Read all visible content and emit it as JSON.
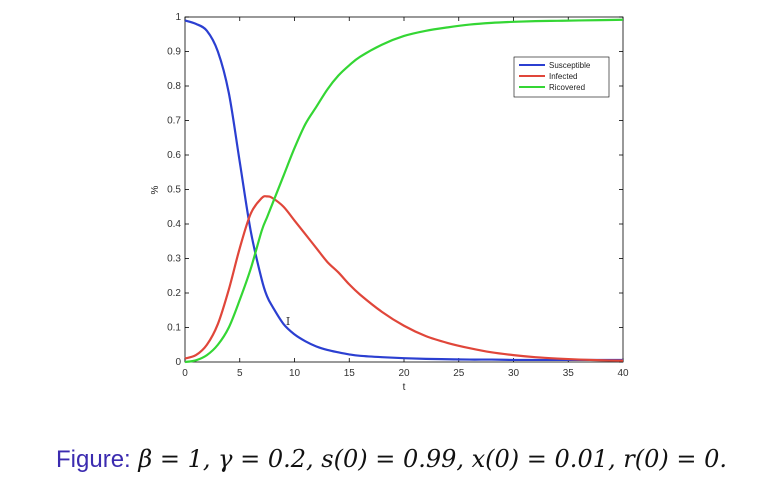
{
  "chart_data": {
    "type": "line",
    "title": "",
    "xlabel": "t",
    "ylabel": "%",
    "xlim": [
      0,
      40
    ],
    "ylim": [
      0,
      1
    ],
    "xticks": [
      0,
      5,
      10,
      15,
      20,
      25,
      30,
      35,
      40
    ],
    "yticks": [
      0,
      0.1,
      0.2,
      0.3,
      0.4,
      0.5,
      0.6,
      0.7,
      0.8,
      0.9,
      1
    ],
    "grid": false,
    "legend_position": "top-right",
    "x": [
      0,
      1,
      2,
      3,
      4,
      5,
      6,
      7,
      7.5,
      8,
      9,
      10,
      11,
      12,
      13,
      14,
      15,
      16,
      18,
      20,
      22,
      24,
      26,
      28,
      30,
      32,
      34,
      36,
      38,
      40
    ],
    "series": [
      {
        "name": "Susceptible",
        "color": "#2b3fd1",
        "values": [
          0.99,
          0.98,
          0.96,
          0.9,
          0.78,
          0.58,
          0.38,
          0.24,
          0.19,
          0.16,
          0.11,
          0.08,
          0.06,
          0.045,
          0.035,
          0.028,
          0.022,
          0.018,
          0.014,
          0.011,
          0.009,
          0.008,
          0.007,
          0.007,
          0.006,
          0.006,
          0.006,
          0.006,
          0.006,
          0.006
        ]
      },
      {
        "name": "Infected",
        "color": "#e0463a",
        "values": [
          0.01,
          0.02,
          0.05,
          0.11,
          0.21,
          0.33,
          0.43,
          0.475,
          0.48,
          0.475,
          0.45,
          0.41,
          0.37,
          0.33,
          0.29,
          0.26,
          0.225,
          0.195,
          0.145,
          0.105,
          0.075,
          0.055,
          0.04,
          0.028,
          0.02,
          0.014,
          0.01,
          0.007,
          0.005,
          0.004
        ]
      },
      {
        "name": "Ricovered",
        "color": "#34d634",
        "values": [
          0,
          0.005,
          0.02,
          0.05,
          0.1,
          0.18,
          0.27,
          0.38,
          0.42,
          0.46,
          0.54,
          0.62,
          0.69,
          0.74,
          0.79,
          0.83,
          0.86,
          0.885,
          0.92,
          0.945,
          0.96,
          0.97,
          0.978,
          0.983,
          0.986,
          0.988,
          0.989,
          0.99,
          0.991,
          0.992
        ]
      }
    ],
    "annotations": [
      "I"
    ]
  },
  "caption": {
    "label": "Figure:",
    "text": "β = 1, γ = 0.2, s(0) = 0.99, x(0) = 0.01, r(0) = 0."
  }
}
